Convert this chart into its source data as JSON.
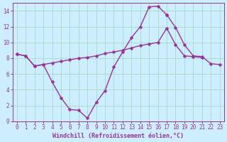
{
  "bg_color": "#cceeff",
  "grid_color": "#aaddcc",
  "line_color": "#993399",
  "marker": "D",
  "markersize": 2.5,
  "linewidth": 1.0,
  "xlabel": "Windchill (Refroidissement éolien,°C)",
  "xlabel_color": "#993399",
  "xlabel_fontsize": 6,
  "tick_color": "#993399",
  "tick_fontsize": 5.5,
  "xlim": [
    -0.5,
    23.5
  ],
  "ylim": [
    0,
    15
  ],
  "yticks": [
    0,
    2,
    4,
    6,
    8,
    10,
    12,
    14
  ],
  "xticks": [
    0,
    1,
    2,
    3,
    4,
    5,
    6,
    7,
    8,
    9,
    10,
    11,
    12,
    13,
    14,
    15,
    16,
    17,
    18,
    19,
    20,
    21,
    22,
    23
  ],
  "lines": [
    {
      "x": [
        0,
        1,
        2,
        3,
        4,
        5,
        6,
        7,
        8,
        9,
        10,
        11,
        12,
        13,
        14,
        15,
        16,
        17
      ],
      "y": [
        8.5,
        8.3,
        7.0,
        7.2,
        5.0,
        3.0,
        1.5,
        1.4,
        0.4,
        2.4,
        3.9,
        6.9,
        8.8,
        10.6,
        12.0,
        14.5,
        14.6,
        13.5
      ]
    },
    {
      "x": [
        0,
        1,
        2,
        3,
        4,
        5,
        6,
        7,
        8,
        9,
        10,
        11,
        12,
        13,
        14,
        15,
        16,
        17,
        18,
        19,
        20,
        21
      ],
      "y": [
        8.5,
        8.3,
        7.0,
        7.2,
        7.4,
        7.6,
        7.8,
        8.0,
        8.1,
        8.3,
        8.6,
        8.8,
        9.0,
        9.3,
        9.6,
        9.8,
        10.0,
        11.8,
        9.7,
        8.3,
        8.2,
        8.1
      ]
    },
    {
      "x": [
        17,
        18,
        19,
        20,
        21,
        22,
        23
      ],
      "y": [
        13.5,
        11.9,
        9.7,
        8.3,
        8.2,
        7.3,
        7.2
      ]
    }
  ]
}
